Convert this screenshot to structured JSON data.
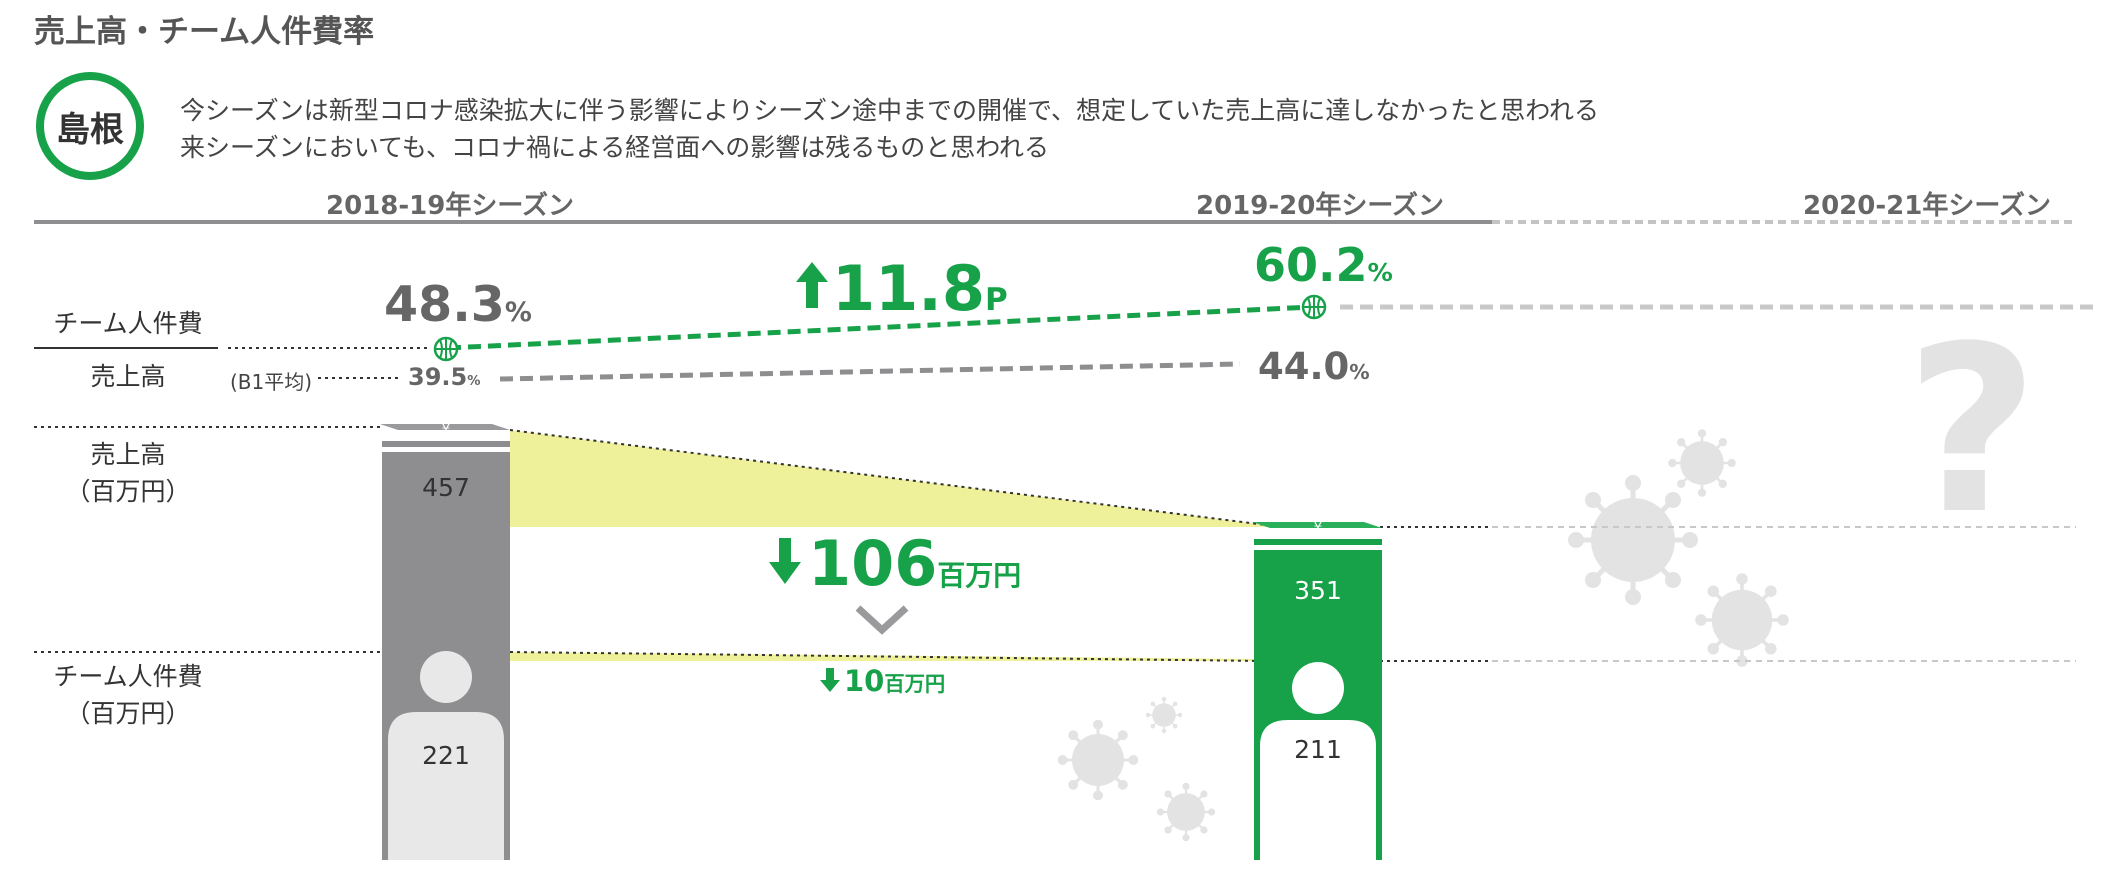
{
  "title": "売上高・チーム人件費率",
  "team": "島根",
  "comments": [
    "今シーズンは新型コロナ感染拡大に伴う影響によりシーズン途中までの開催で、想定していた売上高に達しなかったと思われる",
    "来シーズンにおいても、コロナ禍による経営面への影響は残るものと思われる"
  ],
  "seasons": [
    "2018-19年シーズン",
    "2019-20年シーズン",
    "2020-21年シーズン"
  ],
  "row_labels": {
    "ratio_numerator": "チーム人件費",
    "ratio_denominator": "売上高",
    "b1_avg": "(B1平均)",
    "sales_line1": "売上高",
    "sales_line2": "（百万円）",
    "cost_line1": "チーム人件費",
    "cost_line2": "（百万円）"
  },
  "ratio": {
    "s1": "48.3",
    "s2": "60.2",
    "pct": "%",
    "b1_s1": "39.5",
    "b1_s2": "44.0",
    "change_value": "11.8",
    "change_unit": "P"
  },
  "sales_change": {
    "value": "106",
    "unit": "百万円"
  },
  "cost_change": {
    "value": "10",
    "unit": "百万円"
  },
  "unknown_mark": "?",
  "colors": {
    "accent": "#17a24a",
    "gray_bar": "#8e8e90",
    "light_fill": "#e6e6e6",
    "yellow": "#eff09a"
  },
  "chart_data": {
    "type": "bar",
    "categories": [
      "2018-19年シーズン",
      "2019-20年シーズン",
      "2020-21年シーズン"
    ],
    "series": [
      {
        "name": "売上高",
        "values": [
          457,
          351,
          null
        ]
      },
      {
        "name": "チーム人件費",
        "values": [
          221,
          211,
          null
        ]
      },
      {
        "name": "チーム人件費/売上高",
        "values": [
          48.3,
          60.2,
          null
        ]
      },
      {
        "name": "(B1平均)",
        "values": [
          39.5,
          44.0,
          null
        ]
      }
    ]
  }
}
